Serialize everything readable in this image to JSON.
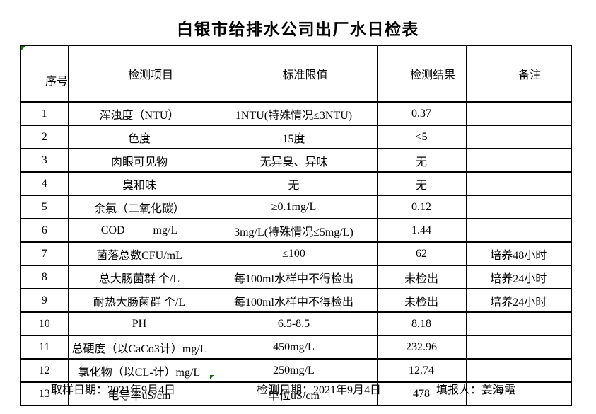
{
  "title": "白银市给排水公司出厂水日检表",
  "table": {
    "headers": [
      "序号",
      "检测项目",
      "标准限值",
      "检测结果",
      "备注"
    ],
    "rows": [
      {
        "no": "1",
        "item": "浑浊度（NTU）",
        "limit": "1NTU(特殊情况≤3NTU)",
        "result": "0.37",
        "note": ""
      },
      {
        "no": "2",
        "item": "色度",
        "limit": "15度",
        "result": "<5",
        "note": ""
      },
      {
        "no": "3",
        "item": "肉眼可见物",
        "limit": "无异臭、异味",
        "result": "无",
        "note": ""
      },
      {
        "no": "4",
        "item": "臭和味",
        "limit": "无",
        "result": "无",
        "note": ""
      },
      {
        "no": "5",
        "item": "余氯（二氧化碳）",
        "limit": "≥0.1mg/L",
        "result": "0.12",
        "note": ""
      },
      {
        "no": "6",
        "item": "COD          mg/L",
        "limit": "3mg/L(特殊情况≤5mg/L)",
        "result": "1.44",
        "note": ""
      },
      {
        "no": "7",
        "item": "菌落总数CFU/mL",
        "limit": "≤100",
        "result": "62",
        "note": "培养48小时"
      },
      {
        "no": "8",
        "item": "总大肠菌群 个/L",
        "limit": "每100ml水样中不得检出",
        "result": "未检出",
        "note": "培养24小时"
      },
      {
        "no": "9",
        "item": "耐热大肠菌群 个/L",
        "limit": "每100ml水样中不得检出",
        "result": "未检出",
        "note": "培养24小时"
      },
      {
        "no": "10",
        "item": "PH",
        "limit": "6.5-8.5",
        "result": "8.18",
        "note": ""
      },
      {
        "no": "11",
        "item": "总硬度（以CaCo3计）mg/L",
        "limit": "450mg/L",
        "result": "232.96",
        "note": ""
      },
      {
        "no": "12",
        "item": "氯化物（以CL-计）mg/L",
        "limit": "250mg/L",
        "result": "12.74",
        "note": ""
      },
      {
        "no": "13",
        "item": "电导率uS/cm",
        "limit": "单位uS/cm",
        "result": "478",
        "note": ""
      }
    ]
  },
  "footer": {
    "sampling_date": "取样日期：2021年9月4日",
    "test_date": "检测日期：2021年9月4日",
    "reporter": "填报人：姜海霞"
  },
  "colors": {
    "border": "#000000",
    "marker_green": "#007500",
    "background": "#ffffff"
  },
  "icons": {
    "excel_error_marker": "green-corner-triangle"
  }
}
